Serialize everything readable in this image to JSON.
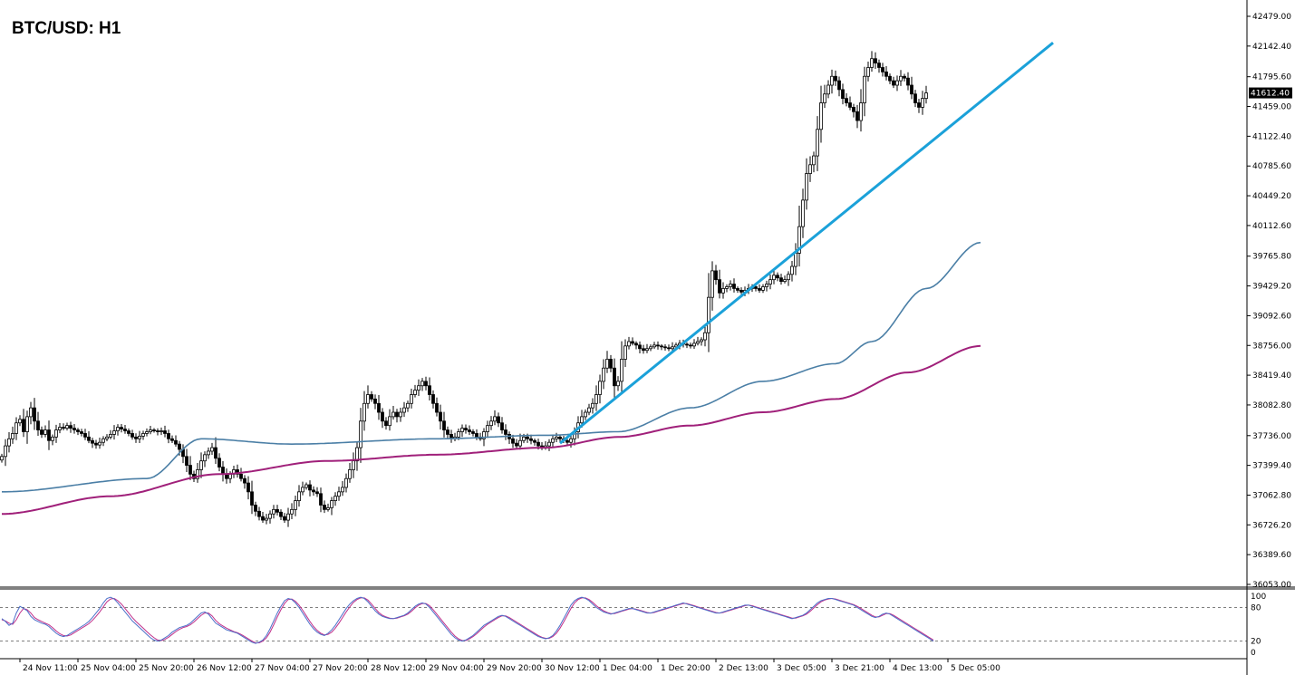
{
  "chart_data": {
    "type": "candlestick",
    "title": "BTC/USD: H1",
    "current_price": "41612.40",
    "y_ticks": [
      "42479.00",
      "42142.40",
      "41795.60",
      "41459.00",
      "41122.40",
      "40785.60",
      "40449.20",
      "40112.60",
      "39765.80",
      "39429.20",
      "39092.60",
      "38756.00",
      "38419.40",
      "38082.80",
      "37736.00",
      "37399.40",
      "37062.80",
      "36726.20",
      "36389.60",
      "36053.00"
    ],
    "y_tick_values": [
      42479.0,
      42142.4,
      41795.6,
      41459.0,
      41122.4,
      40785.6,
      40449.2,
      40112.6,
      39765.8,
      39429.2,
      39092.6,
      38756.0,
      38419.4,
      38082.8,
      37736.0,
      37399.4,
      37062.8,
      36726.2,
      36389.6,
      36053.0
    ],
    "ylim": [
      36053.0,
      42479.0
    ],
    "x_ticks": [
      "24 Nov 11:00",
      "25 Nov 04:00",
      "25 Nov 20:00",
      "26 Nov 12:00",
      "27 Nov 04:00",
      "27 Nov 20:00",
      "28 Nov 12:00",
      "29 Nov 04:00",
      "29 Nov 20:00",
      "30 Nov 12:00",
      "1 Dec 04:00",
      "1 Dec 20:00",
      "2 Dec 13:00",
      "3 Dec 05:00",
      "3 Dec 21:00",
      "4 Dec 13:00",
      "5 Dec 05:00"
    ],
    "x_tick_index": [
      5,
      21,
      37,
      53,
      69,
      85,
      101,
      117,
      133,
      149,
      165,
      181,
      197,
      213,
      229,
      245,
      261
    ],
    "closes": [
      37500,
      37620,
      37700,
      37760,
      37880,
      37920,
      37780,
      37950,
      38050,
      37900,
      37800,
      37750,
      37800,
      37680,
      37720,
      37800,
      37830,
      37820,
      37850,
      37820,
      37800,
      37780,
      37760,
      37720,
      37680,
      37650,
      37630,
      37660,
      37700,
      37720,
      37750,
      37790,
      37830,
      37810,
      37790,
      37760,
      37720,
      37700,
      37730,
      37760,
      37780,
      37800,
      37790,
      37780,
      37790,
      37760,
      37700,
      37680,
      37640,
      37580,
      37500,
      37400,
      37300,
      37250,
      37350,
      37450,
      37520,
      37560,
      37600,
      37480,
      37380,
      37300,
      37250,
      37300,
      37350,
      37300,
      37250,
      37200,
      37100,
      36950,
      36880,
      36820,
      36780,
      36800,
      36850,
      36900,
      36870,
      36820,
      36780,
      36850,
      36900,
      37000,
      37100,
      37150,
      37180,
      37120,
      37100,
      37080,
      36950,
      36900,
      36920,
      37000,
      37050,
      37100,
      37150,
      37250,
      37350,
      37450,
      37600,
      37900,
      38100,
      38200,
      38150,
      38100,
      38000,
      37900,
      37850,
      37950,
      38000,
      37950,
      38000,
      38050,
      38100,
      38200,
      38250,
      38300,
      38350,
      38300,
      38200,
      38100,
      38000,
      37900,
      37800,
      37750,
      37700,
      37720,
      37780,
      37820,
      37800,
      37780,
      37760,
      37720,
      37700,
      37780,
      37850,
      37900,
      37950,
      37880,
      37800,
      37750,
      37700,
      37650,
      37620,
      37680,
      37720,
      37700,
      37680,
      37660,
      37620,
      37600,
      37620,
      37660,
      37700,
      37720,
      37700,
      37680,
      37660,
      37700,
      37780,
      37880,
      37950,
      38000,
      38050,
      38100,
      38200,
      38350,
      38500,
      38600,
      38500,
      38300,
      38350,
      38600,
      38750,
      38800,
      38780,
      38760,
      38720,
      38700,
      38720,
      38740,
      38760,
      38750,
      38740,
      38730,
      38720,
      38740,
      38760,
      38780,
      38770,
      38760,
      38750,
      38780,
      38800,
      38820,
      38900,
      39300,
      39600,
      39500,
      39350,
      39400,
      39420,
      39450,
      39400,
      39380,
      39360,
      39380,
      39400,
      39420,
      39400,
      39380,
      39420,
      39450,
      39500,
      39550,
      39520,
      39480,
      39500,
      39560,
      39650,
      39800,
      40100,
      40400,
      40700,
      40800,
      40900,
      41200,
      41500,
      41600,
      41700,
      41800,
      41750,
      41650,
      41550,
      41500,
      41450,
      41400,
      41300,
      41500,
      41800,
      41900,
      42000,
      41950,
      41900,
      41850,
      41800,
      41750,
      41700,
      41750,
      41800,
      41780,
      41700,
      41600,
      41500,
      41450,
      41550,
      41612.4
    ],
    "ma_fast": {
      "start": 37100,
      "knots": [
        [
          0,
          37100
        ],
        [
          40,
          37250
        ],
        [
          55,
          37700
        ],
        [
          80,
          37640
        ],
        [
          120,
          37700
        ],
        [
          150,
          37740
        ],
        [
          170,
          37780
        ],
        [
          190,
          38050
        ],
        [
          210,
          38350
        ],
        [
          230,
          38550
        ],
        [
          240,
          38800
        ],
        [
          255,
          39400
        ],
        [
          270,
          39920
        ]
      ]
    },
    "ma_slow": {
      "knots": [
        [
          0,
          36850
        ],
        [
          30,
          37050
        ],
        [
          60,
          37300
        ],
        [
          90,
          37450
        ],
        [
          120,
          37520
        ],
        [
          150,
          37600
        ],
        [
          170,
          37720
        ],
        [
          190,
          37850
        ],
        [
          210,
          38000
        ],
        [
          230,
          38150
        ],
        [
          250,
          38450
        ],
        [
          270,
          38750
        ]
      ]
    },
    "trendline": {
      "from": [
        154,
        37650
      ],
      "to": [
        290,
        42180
      ]
    },
    "oscillator": {
      "name": "stochastic",
      "levels": [
        "100",
        "80",
        "20",
        "0"
      ],
      "level_values": [
        100,
        80,
        20,
        0
      ],
      "k": [
        60,
        55,
        48,
        52,
        70,
        82,
        78,
        74,
        64,
        58,
        55,
        52,
        50,
        46,
        40,
        34,
        30,
        28,
        30,
        34,
        38,
        42,
        46,
        50,
        55,
        62,
        70,
        78,
        88,
        96,
        98,
        95,
        88,
        80,
        72,
        64,
        56,
        50,
        44,
        38,
        32,
        26,
        22,
        20,
        22,
        26,
        30,
        36,
        40,
        44,
        46,
        48,
        52,
        58,
        64,
        70,
        72,
        68,
        60,
        52,
        48,
        44,
        40,
        38,
        36,
        34,
        30,
        26,
        22,
        18,
        16,
        18,
        22,
        30,
        42,
        56,
        70,
        82,
        92,
        96,
        94,
        88,
        80,
        70,
        60,
        50,
        42,
        36,
        32,
        30,
        34,
        40,
        48,
        58,
        68,
        78,
        86,
        92,
        96,
        98,
        96,
        90,
        82,
        74,
        68,
        64,
        62,
        60,
        60,
        62,
        64,
        66,
        70,
        76,
        82,
        86,
        88,
        86,
        80,
        72,
        64,
        56,
        48,
        40,
        32,
        26,
        22,
        20,
        22,
        26,
        30,
        36,
        42,
        48,
        52,
        56,
        60,
        64,
        66,
        64,
        60,
        56,
        52,
        48,
        44,
        40,
        36,
        32,
        28,
        26,
        24,
        26,
        30,
        38,
        48,
        60,
        72,
        84,
        92,
        96,
        98,
        96,
        92,
        86,
        80,
        76,
        72,
        70,
        68,
        70,
        72,
        74,
        76,
        78,
        78,
        76,
        74,
        72,
        70,
        70,
        72,
        74,
        76,
        78,
        80,
        82,
        84,
        86,
        88,
        86,
        84,
        82,
        80,
        78,
        76,
        74,
        72,
        70,
        70,
        72,
        74,
        76,
        78,
        80,
        82,
        84,
        84,
        82,
        80,
        78,
        76,
        74,
        72,
        70,
        68,
        66,
        64,
        62,
        60,
        62,
        64,
        66,
        70,
        76,
        82,
        88,
        92,
        94,
        96,
        96,
        94,
        92,
        90,
        88,
        86,
        84,
        80,
        76,
        72,
        68,
        64,
        62,
        64,
        68,
        70,
        68,
        64,
        60,
        56,
        52,
        48,
        44,
        40,
        36,
        32,
        28,
        24,
        20
      ],
      "d": [
        58,
        56,
        52,
        50,
        58,
        70,
        78,
        76,
        70,
        62,
        58,
        55,
        52,
        49,
        44,
        38,
        33,
        30,
        29,
        31,
        35,
        39,
        43,
        47,
        51,
        57,
        64,
        72,
        81,
        90,
        95,
        96,
        92,
        86,
        78,
        70,
        62,
        55,
        49,
        43,
        37,
        31,
        26,
        22,
        21,
        23,
        27,
        32,
        37,
        41,
        44,
        46,
        49,
        54,
        60,
        66,
        70,
        70,
        65,
        57,
        51,
        47,
        43,
        40,
        37,
        35,
        32,
        28,
        24,
        20,
        17,
        17,
        20,
        26,
        36,
        49,
        63,
        76,
        87,
        94,
        95,
        91,
        84,
        75,
        65,
        55,
        46,
        39,
        34,
        31,
        32,
        36,
        43,
        52,
        62,
        72,
        81,
        89,
        94,
        97,
        97,
        93,
        86,
        78,
        71,
        66,
        63,
        61,
        60,
        61,
        63,
        65,
        68,
        73,
        79,
        84,
        87,
        87,
        83,
        76,
        68,
        60,
        52,
        44,
        36,
        29,
        24,
        21,
        21,
        24,
        28,
        33,
        39,
        45,
        50,
        54,
        58,
        62,
        65,
        65,
        62,
        58,
        54,
        50,
        46,
        42,
        38,
        34,
        30,
        27,
        25,
        25,
        28,
        34,
        43,
        54,
        66,
        78,
        88,
        94,
        97,
        97,
        94,
        89,
        83,
        78,
        74,
        71,
        69,
        69,
        71,
        73,
        75,
        77,
        78,
        77,
        75,
        73,
        71,
        70,
        71,
        73,
        75,
        77,
        79,
        81,
        83,
        85,
        87,
        87,
        85,
        83,
        81,
        79,
        77,
        75,
        73,
        71,
        70,
        71,
        73,
        75,
        77,
        79,
        81,
        83,
        84,
        83,
        81,
        79,
        77,
        75,
        73,
        71,
        69,
        67,
        65,
        63,
        61,
        61,
        63,
        65,
        68,
        73,
        79,
        85,
        90,
        93,
        95,
        96,
        95,
        93,
        91,
        89,
        87,
        85,
        82,
        78,
        74,
        70,
        66,
        63,
        63,
        66,
        69,
        69,
        66,
        62,
        58,
        54,
        50,
        46,
        42,
        38,
        34,
        30,
        26,
        22
      ]
    },
    "colors": {
      "up_candle": "#ffffff",
      "candle": "#000000",
      "trendline": "#1ba1d9",
      "ma_fast": "#4b7fa6",
      "ma_slow": "#a0207a",
      "osc_k": "#4b6fc9",
      "osc_d": "#c0308a",
      "price_tag": "#000000"
    }
  }
}
